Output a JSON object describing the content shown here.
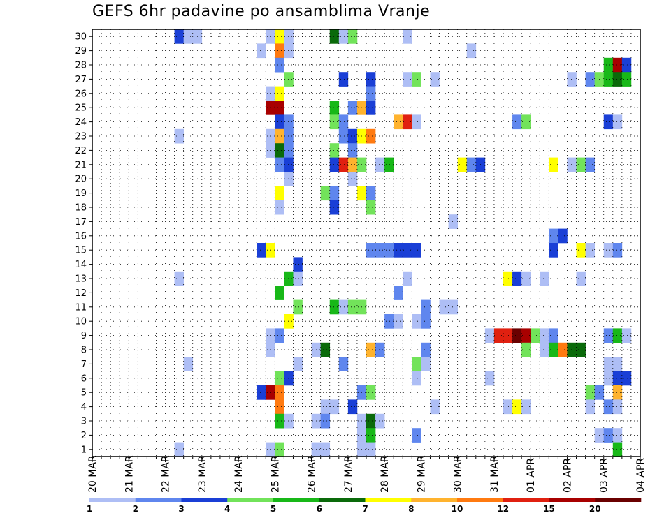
{
  "chart_data": {
    "type": "heatmap",
    "title": "GEFS 6hr padavine po ansamblima Vranje",
    "xlabel": "",
    "ylabel": "",
    "x_tick_labels": [
      "20 MAR",
      "21 MAR",
      "22 MAR",
      "23 MAR",
      "24 MAR",
      "25 MAR",
      "26 MAR",
      "27 MAR",
      "28 MAR",
      "29 MAR",
      "30 MAR",
      "31 MAR",
      "01 APR",
      "02 APR",
      "03 APR",
      "04 APR"
    ],
    "y_range": [
      1,
      30
    ],
    "x_steps_per_day": 4,
    "grid": true,
    "colorbar": {
      "levels": [
        "1",
        "2",
        "3",
        "4",
        "5",
        "6",
        "7",
        "8",
        "10",
        "12",
        "15",
        "20"
      ],
      "colors": [
        "#aebef5",
        "#5f86ee",
        "#1a3fd6",
        "#72e35a",
        "#18b818",
        "#0a6a0a",
        "#ffff00",
        "#ffb32e",
        "#ff7a10",
        "#e02010",
        "#a80000",
        "#6a0000"
      ]
    },
    "cells": [
      [
        30,
        9,
        3
      ],
      [
        30,
        10,
        1
      ],
      [
        30,
        11,
        1
      ],
      [
        30,
        19,
        1
      ],
      [
        30,
        20,
        7
      ],
      [
        30,
        21,
        1
      ],
      [
        30,
        26,
        6
      ],
      [
        30,
        27,
        1
      ],
      [
        30,
        28,
        4
      ],
      [
        30,
        34,
        1
      ],
      [
        29,
        18,
        1
      ],
      [
        29,
        20,
        9
      ],
      [
        29,
        21,
        1
      ],
      [
        29,
        41,
        1
      ],
      [
        28,
        20,
        2
      ],
      [
        28,
        56,
        5
      ],
      [
        28,
        57,
        11
      ],
      [
        28,
        58,
        3
      ],
      [
        27,
        21,
        4
      ],
      [
        27,
        27,
        3
      ],
      [
        27,
        30,
        3
      ],
      [
        27,
        34,
        1
      ],
      [
        27,
        35,
        4
      ],
      [
        27,
        37,
        1
      ],
      [
        27,
        52,
        1
      ],
      [
        27,
        54,
        2
      ],
      [
        27,
        55,
        4
      ],
      [
        27,
        56,
        5
      ],
      [
        27,
        57,
        6
      ],
      [
        27,
        58,
        5
      ],
      [
        26,
        19,
        1
      ],
      [
        26,
        20,
        7
      ],
      [
        26,
        30,
        2
      ],
      [
        25,
        19,
        11
      ],
      [
        25,
        20,
        11
      ],
      [
        25,
        26,
        5
      ],
      [
        25,
        28,
        2
      ],
      [
        25,
        29,
        8
      ],
      [
        25,
        30,
        3
      ],
      [
        24,
        20,
        3
      ],
      [
        24,
        21,
        2
      ],
      [
        24,
        26,
        4
      ],
      [
        24,
        27,
        2
      ],
      [
        24,
        33,
        8
      ],
      [
        24,
        34,
        10
      ],
      [
        24,
        35,
        1
      ],
      [
        24,
        46,
        2
      ],
      [
        24,
        47,
        4
      ],
      [
        24,
        56,
        3
      ],
      [
        24,
        57,
        1
      ],
      [
        23,
        9,
        1
      ],
      [
        23,
        19,
        1
      ],
      [
        23,
        20,
        8
      ],
      [
        23,
        21,
        2
      ],
      [
        23,
        27,
        2
      ],
      [
        23,
        28,
        3
      ],
      [
        23,
        29,
        7
      ],
      [
        23,
        30,
        9
      ],
      [
        22,
        19,
        1
      ],
      [
        22,
        20,
        6
      ],
      [
        22,
        21,
        2
      ],
      [
        22,
        26,
        4
      ],
      [
        22,
        28,
        2
      ],
      [
        21,
        20,
        2
      ],
      [
        21,
        21,
        3
      ],
      [
        21,
        26,
        3
      ],
      [
        21,
        27,
        10
      ],
      [
        21,
        28,
        8
      ],
      [
        21,
        29,
        4
      ],
      [
        21,
        31,
        1
      ],
      [
        21,
        32,
        5
      ],
      [
        21,
        40,
        7
      ],
      [
        21,
        41,
        2
      ],
      [
        21,
        42,
        3
      ],
      [
        21,
        50,
        7
      ],
      [
        21,
        52,
        1
      ],
      [
        21,
        53,
        4
      ],
      [
        21,
        54,
        2
      ],
      [
        20,
        21,
        1
      ],
      [
        20,
        28,
        1
      ],
      [
        19,
        20,
        7
      ],
      [
        19,
        25,
        4
      ],
      [
        19,
        26,
        2
      ],
      [
        19,
        29,
        7
      ],
      [
        19,
        30,
        2
      ],
      [
        18,
        20,
        1
      ],
      [
        18,
        26,
        3
      ],
      [
        18,
        30,
        4
      ],
      [
        17,
        39,
        1
      ],
      [
        16,
        50,
        2
      ],
      [
        16,
        51,
        3
      ],
      [
        15,
        18,
        3
      ],
      [
        15,
        19,
        7
      ],
      [
        15,
        30,
        2
      ],
      [
        15,
        31,
        2
      ],
      [
        15,
        32,
        2
      ],
      [
        15,
        33,
        3
      ],
      [
        15,
        34,
        3
      ],
      [
        15,
        35,
        3
      ],
      [
        15,
        50,
        3
      ],
      [
        15,
        53,
        7
      ],
      [
        15,
        54,
        1
      ],
      [
        15,
        56,
        1
      ],
      [
        15,
        57,
        2
      ],
      [
        14,
        22,
        3
      ],
      [
        13,
        9,
        1
      ],
      [
        13,
        21,
        5
      ],
      [
        13,
        22,
        1
      ],
      [
        13,
        34,
        1
      ],
      [
        13,
        45,
        7
      ],
      [
        13,
        46,
        3
      ],
      [
        13,
        47,
        1
      ],
      [
        13,
        49,
        1
      ],
      [
        13,
        53,
        1
      ],
      [
        12,
        20,
        5
      ],
      [
        12,
        33,
        2
      ],
      [
        11,
        22,
        4
      ],
      [
        11,
        26,
        5
      ],
      [
        11,
        27,
        1
      ],
      [
        11,
        28,
        4
      ],
      [
        11,
        29,
        4
      ],
      [
        11,
        36,
        2
      ],
      [
        11,
        38,
        1
      ],
      [
        11,
        39,
        1
      ],
      [
        10,
        21,
        7
      ],
      [
        10,
        32,
        2
      ],
      [
        10,
        33,
        1
      ],
      [
        10,
        35,
        1
      ],
      [
        10,
        36,
        2
      ],
      [
        9,
        19,
        1
      ],
      [
        9,
        20,
        2
      ],
      [
        9,
        43,
        1
      ],
      [
        9,
        44,
        10
      ],
      [
        9,
        45,
        10
      ],
      [
        9,
        46,
        12
      ],
      [
        9,
        47,
        11
      ],
      [
        9,
        48,
        4
      ],
      [
        9,
        49,
        1
      ],
      [
        9,
        50,
        2
      ],
      [
        9,
        56,
        2
      ],
      [
        9,
        57,
        5
      ],
      [
        9,
        58,
        1
      ],
      [
        8,
        19,
        1
      ],
      [
        8,
        24,
        1
      ],
      [
        8,
        25,
        6
      ],
      [
        8,
        30,
        8
      ],
      [
        8,
        31,
        2
      ],
      [
        8,
        36,
        2
      ],
      [
        8,
        47,
        4
      ],
      [
        8,
        49,
        1
      ],
      [
        8,
        50,
        5
      ],
      [
        8,
        51,
        9
      ],
      [
        8,
        52,
        6
      ],
      [
        8,
        53,
        6
      ],
      [
        7,
        10,
        1
      ],
      [
        7,
        22,
        1
      ],
      [
        7,
        27,
        2
      ],
      [
        7,
        35,
        4
      ],
      [
        7,
        36,
        1
      ],
      [
        7,
        56,
        1
      ],
      [
        7,
        57,
        1
      ],
      [
        6,
        20,
        4
      ],
      [
        6,
        21,
        3
      ],
      [
        6,
        35,
        1
      ],
      [
        6,
        43,
        1
      ],
      [
        6,
        56,
        1
      ],
      [
        6,
        57,
        3
      ],
      [
        6,
        58,
        3
      ],
      [
        5,
        18,
        3
      ],
      [
        5,
        19,
        11
      ],
      [
        5,
        20,
        9
      ],
      [
        5,
        29,
        2
      ],
      [
        5,
        30,
        4
      ],
      [
        5,
        54,
        4
      ],
      [
        5,
        55,
        2
      ],
      [
        5,
        57,
        8
      ],
      [
        4,
        20,
        9
      ],
      [
        4,
        25,
        1
      ],
      [
        4,
        26,
        1
      ],
      [
        4,
        28,
        3
      ],
      [
        4,
        37,
        1
      ],
      [
        4,
        45,
        1
      ],
      [
        4,
        46,
        7
      ],
      [
        4,
        47,
        1
      ],
      [
        4,
        54,
        1
      ],
      [
        4,
        56,
        2
      ],
      [
        4,
        57,
        1
      ],
      [
        3,
        20,
        5
      ],
      [
        3,
        21,
        1
      ],
      [
        3,
        24,
        1
      ],
      [
        3,
        25,
        2
      ],
      [
        3,
        29,
        1
      ],
      [
        3,
        30,
        6
      ],
      [
        3,
        31,
        1
      ],
      [
        2,
        29,
        1
      ],
      [
        2,
        30,
        5
      ],
      [
        2,
        35,
        2
      ],
      [
        2,
        55,
        1
      ],
      [
        2,
        56,
        2
      ],
      [
        2,
        57,
        1
      ],
      [
        1,
        9,
        1
      ],
      [
        1,
        19,
        1
      ],
      [
        1,
        20,
        4
      ],
      [
        1,
        24,
        1
      ],
      [
        1,
        25,
        1
      ],
      [
        1,
        29,
        1
      ],
      [
        1,
        30,
        1
      ],
      [
        1,
        57,
        5
      ]
    ]
  }
}
